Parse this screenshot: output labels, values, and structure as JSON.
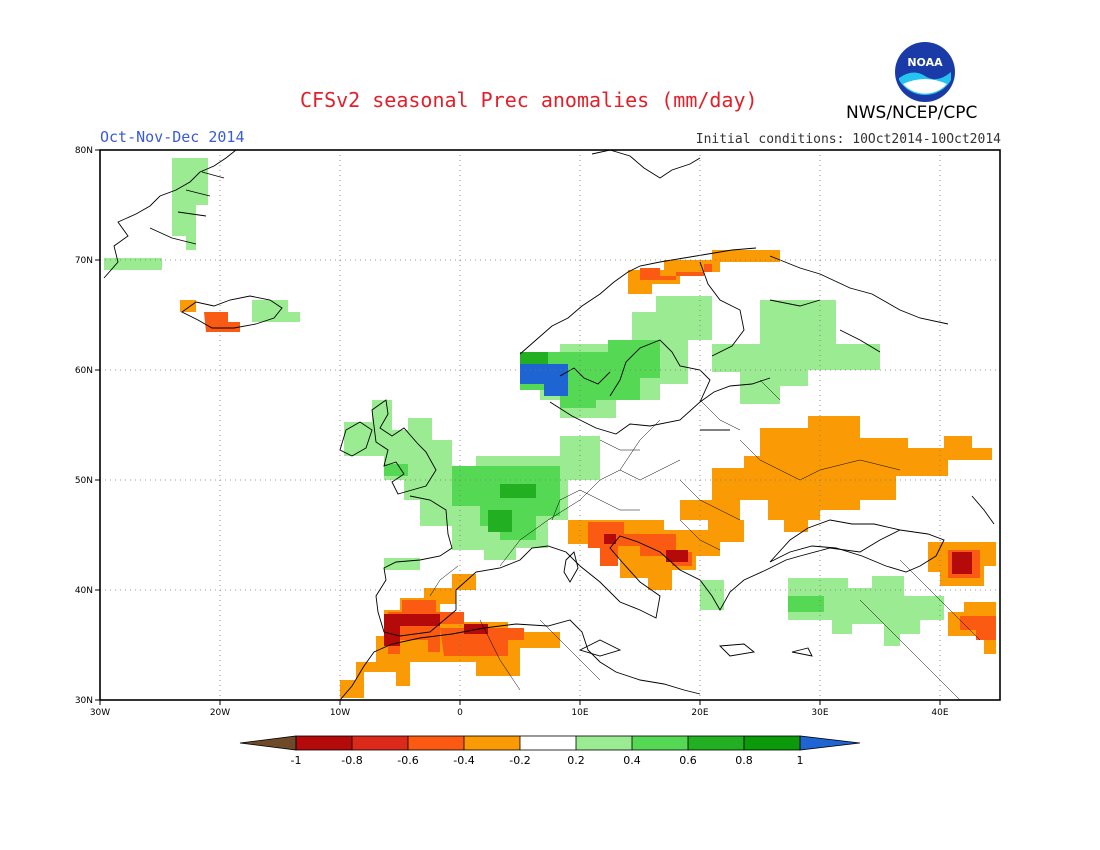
{
  "header": {
    "title": "CFSv2 seasonal Prec anomalies (mm/day)",
    "season": "Oct-Nov-Dec 2014",
    "initial_conditions": "Initial conditions: 10Oct2014-10Oct2014",
    "agency": "NWS/NCEP/CPC",
    "logo_text": "NOAA"
  },
  "axes": {
    "lat_labels": [
      "80N",
      "70N",
      "60N",
      "50N",
      "40N",
      "30N"
    ],
    "lon_labels": [
      "30W",
      "20W",
      "10W",
      "0",
      "10E",
      "20E",
      "30E",
      "40E"
    ]
  },
  "legend": {
    "ticks": [
      "-1",
      "-0.8",
      "-0.6",
      "-0.4",
      "-0.2",
      "0.2",
      "0.4",
      "0.6",
      "0.8",
      "1"
    ],
    "colors": [
      "#6e4a2a",
      "#b40a0a",
      "#dc2a1a",
      "#fa5a12",
      "#fa9a05",
      "#ffffff",
      "#9aeb91",
      "#55d955",
      "#22b022",
      "#0a9a0a",
      "#1e64d2"
    ]
  },
  "chart_data": {
    "type": "map",
    "variable": "Prec anomalies (mm/day)",
    "lon_range": [
      -30,
      45
    ],
    "lat_range": [
      30,
      80
    ],
    "grid_lon": [
      -20,
      -10,
      0,
      10,
      20,
      30,
      40
    ],
    "grid_lat": [
      40,
      50,
      60,
      70
    ],
    "anomaly_regions": [
      {
        "region": "Iceland NW",
        "lon": [
          -22,
          -19
        ],
        "lat": [
          63.5,
          65.5
        ],
        "class": "-0.6"
      },
      {
        "region": "Greenland E coast",
        "lon": [
          -25,
          -20
        ],
        "lat": [
          70,
          78
        ],
        "class": "0.2"
      },
      {
        "region": "Iceland E",
        "lon": [
          -17,
          -14
        ],
        "lat": [
          64,
          66
        ],
        "class": "0.2"
      },
      {
        "region": "British Isles",
        "lon": [
          -10,
          2
        ],
        "lat": [
          49,
          58
        ],
        "class": "0.2"
      },
      {
        "region": "France / Benelux",
        "lon": [
          -4,
          8
        ],
        "lat": [
          42,
          52
        ],
        "class": "0.4"
      },
      {
        "region": "Norway SW coast",
        "lon": [
          5,
          9
        ],
        "lat": [
          58,
          61.5
        ],
        "class": "1"
      },
      {
        "region": "S Norway / Sweden",
        "lon": [
          5,
          22
        ],
        "lat": [
          56,
          63
        ],
        "class": "0.4"
      },
      {
        "region": "Finland / Russia NW",
        "lon": [
          22,
          35
        ],
        "lat": [
          58,
          65
        ],
        "class": "0.2"
      },
      {
        "region": "N Norway coast",
        "lon": [
          14,
          25
        ],
        "lat": [
          68,
          71
        ],
        "class": "-0.4"
      },
      {
        "region": "Ukraine / S Russia",
        "lon": [
          21,
          43
        ],
        "lat": [
          46,
          54
        ],
        "class": "-0.4"
      },
      {
        "region": "Italy / Adriatic",
        "lon": [
          9,
          20
        ],
        "lat": [
          38,
          45
        ],
        "class": "-0.6"
      },
      {
        "region": "Balkans",
        "lon": [
          13,
          24
        ],
        "lat": [
          41,
          46
        ],
        "class": "-0.4"
      },
      {
        "region": "Turkey",
        "lon": [
          26,
          39
        ],
        "lat": [
          36,
          41
        ],
        "class": "0.2"
      },
      {
        "region": "Caucasus",
        "lon": [
          39,
          45
        ],
        "lat": [
          40,
          43
        ],
        "class": "-0.6"
      },
      {
        "region": "E Turkey / N Syria",
        "lon": [
          40,
          45
        ],
        "lat": [
          34,
          38
        ],
        "class": "-0.6"
      },
      {
        "region": "S Iberia / Morocco",
        "lon": [
          -10,
          -1
        ],
        "lat": [
          31,
          40
        ],
        "class": "-0.6"
      },
      {
        "region": "Algeria / Tunisia",
        "lon": [
          -1,
          10
        ],
        "lat": [
          33,
          37
        ],
        "class": "-0.4"
      }
    ]
  }
}
